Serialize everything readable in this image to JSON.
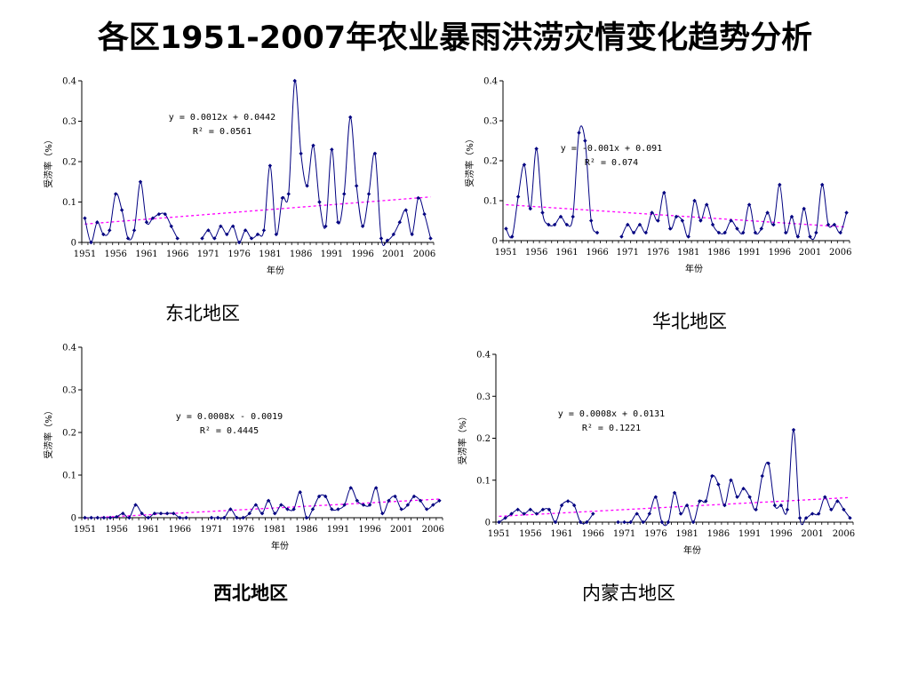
{
  "title": "各区1951-2007年农业暴雨洪涝灾情变化趋势分析",
  "chart_data": [
    {
      "type": "line",
      "region": "东北地区",
      "xlabel": "年份",
      "ylabel": "受涝率（%）",
      "ylim": [
        0,
        0.4
      ],
      "yticks": [
        "0",
        "0.1",
        "0.2",
        "0.3",
        "0.4"
      ],
      "xticks": [
        "1951",
        "1956",
        "1961",
        "1966",
        "1971",
        "1976",
        "1981",
        "1986",
        "1991",
        "1996",
        "2001",
        "2006"
      ],
      "equation": "y = 0.0012x + 0.0442",
      "r2": "R² = 0.0561",
      "trend": {
        "slope": 0.0012,
        "intercept": 0.0442
      },
      "x_start": 1951,
      "values": [
        0.06,
        0.0,
        0.05,
        0.02,
        0.03,
        0.12,
        0.08,
        0.01,
        0.03,
        0.15,
        0.05,
        0.06,
        0.07,
        0.07,
        0.04,
        0.01,
        null,
        null,
        null,
        0.01,
        0.03,
        0.01,
        0.04,
        0.02,
        0.04,
        0.0,
        0.03,
        0.01,
        0.02,
        0.03,
        0.19,
        0.02,
        0.11,
        0.12,
        0.4,
        0.22,
        0.14,
        0.24,
        0.1,
        0.04,
        0.23,
        0.05,
        0.12,
        0.31,
        0.14,
        0.04,
        0.12,
        0.22,
        0.01,
        0.005,
        0.02,
        0.05,
        0.08,
        0.02,
        0.11,
        0.07,
        0.01
      ]
    },
    {
      "type": "line",
      "region": "华北地区",
      "xlabel": "年份",
      "ylabel": "受涝率（%）",
      "ylim": [
        0,
        0.4
      ],
      "yticks": [
        "0",
        "0.1",
        "0.2",
        "0.3",
        "0.4"
      ],
      "xticks": [
        "1951",
        "1956",
        "1961",
        "1966",
        "1971",
        "1976",
        "1981",
        "1986",
        "1991",
        "1996",
        "2001",
        "2006"
      ],
      "equation": "y = -0.001x + 0.091",
      "r2": "R² = 0.074",
      "trend": {
        "slope": -0.001,
        "intercept": 0.091
      },
      "x_start": 1951,
      "values": [
        0.03,
        0.01,
        0.11,
        0.19,
        0.08,
        0.23,
        0.07,
        0.04,
        0.04,
        0.06,
        0.04,
        0.06,
        0.27,
        0.25,
        0.05,
        0.02,
        null,
        null,
        null,
        0.01,
        0.04,
        0.02,
        0.04,
        0.02,
        0.07,
        0.05,
        0.12,
        0.03,
        0.06,
        0.05,
        0.01,
        0.1,
        0.05,
        0.09,
        0.04,
        0.02,
        0.02,
        0.05,
        0.03,
        0.02,
        0.09,
        0.02,
        0.03,
        0.07,
        0.04,
        0.14,
        0.02,
        0.06,
        0.01,
        0.08,
        0.01,
        0.02,
        0.14,
        0.04,
        0.04,
        0.02,
        0.07
      ]
    },
    {
      "type": "line",
      "region": "西北地区",
      "xlabel": "年份",
      "ylabel": "受涝率（%）",
      "ylim": [
        0,
        0.4
      ],
      "yticks": [
        "0",
        "0.1",
        "0.2",
        "0.3",
        "0.4"
      ],
      "xticks": [
        "1951",
        "1956",
        "1961",
        "1966",
        "1971",
        "1976",
        "1981",
        "1986",
        "1991",
        "1996",
        "2001",
        "2006"
      ],
      "equation": "y = 0.0008x - 0.0019",
      "r2": "R² = 0.4445",
      "trend": {
        "slope": 0.0008,
        "intercept": -0.0019
      },
      "x_start": 1951,
      "values": [
        0,
        0,
        0,
        0,
        0,
        0.002,
        0.01,
        0,
        0.03,
        0.01,
        0,
        0.01,
        0.01,
        0.01,
        0.01,
        0,
        0,
        null,
        null,
        null,
        0,
        0,
        0,
        0.02,
        0,
        0,
        0.01,
        0.03,
        0.01,
        0.04,
        0.01,
        0.03,
        0.02,
        0.02,
        0.06,
        0,
        0.02,
        0.05,
        0.05,
        0.02,
        0.02,
        0.03,
        0.07,
        0.04,
        0.03,
        0.03,
        0.07,
        0.01,
        0.04,
        0.05,
        0.02,
        0.03,
        0.05,
        0.04,
        0.02,
        0.03,
        0.04
      ]
    },
    {
      "type": "line",
      "region": "内蒙古地区",
      "xlabel": "年份",
      "ylabel": "受涝率（%）",
      "ylim": [
        0,
        0.4
      ],
      "yticks": [
        "0",
        "0.1",
        "0.2",
        "0.3",
        "0.4"
      ],
      "xticks": [
        "1951",
        "1956",
        "1961",
        "1966",
        "1971",
        "1976",
        "1981",
        "1986",
        "1991",
        "1996",
        "2001",
        "2006"
      ],
      "equation": "y = 0.0008x + 0.0131",
      "r2": "R² = 0.1221",
      "trend": {
        "slope": 0.0008,
        "intercept": 0.0131
      },
      "x_start": 1951,
      "values": [
        0,
        0.01,
        0.02,
        0.03,
        0.02,
        0.03,
        0.02,
        0.03,
        0.03,
        0,
        0.04,
        0.05,
        0.04,
        0,
        0,
        0.02,
        null,
        null,
        null,
        0,
        0,
        0,
        0.02,
        0,
        0.02,
        0.06,
        0,
        0,
        0.07,
        0.02,
        0.04,
        0,
        0.05,
        0.05,
        0.11,
        0.09,
        0.04,
        0.1,
        0.06,
        0.08,
        0.06,
        0.03,
        0.11,
        0.14,
        0.04,
        0.04,
        0.03,
        0.22,
        0.01,
        0.01,
        0.02,
        0.02,
        0.06,
        0.03,
        0.05,
        0.03,
        0.01
      ]
    }
  ]
}
